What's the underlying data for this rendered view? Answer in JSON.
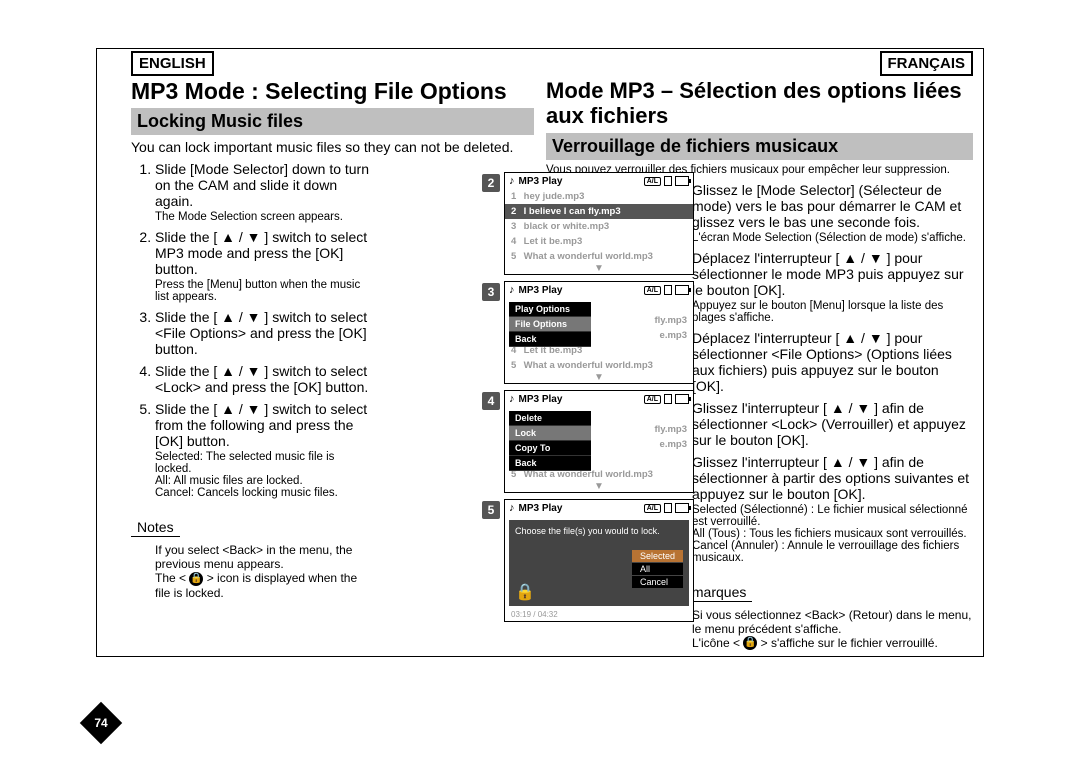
{
  "page_number": "74",
  "lang_en": "ENGLISH",
  "lang_fr": "FRANÇAIS",
  "en": {
    "title": "MP3 Mode : Selecting File Options",
    "section": "Locking Music files",
    "intro": "You can lock important music files so they can not be deleted.",
    "steps": [
      {
        "t": "Slide [Mode Selector] down to turn on the CAM and slide it down again.",
        "s": "The Mode Selection screen appears."
      },
      {
        "t": "Slide the [ ▲ / ▼ ] switch to select MP3 mode and press the [OK] button.",
        "s": "Press the [Menu] button when the music list appears."
      },
      {
        "t": "Slide the [ ▲ / ▼ ] switch to select <File Options> and press the [OK] button."
      },
      {
        "t": "Slide the [ ▲ / ▼ ] switch to select <Lock> and press the [OK] button."
      },
      {
        "t": "Slide the [ ▲ / ▼ ] switch to select from the following and press the [OK] button.",
        "s": "Selected: The selected music file is locked.\nAll: All music files are locked.\nCancel: Cancels locking music files."
      }
    ],
    "notes_label": "Notes",
    "notes": [
      "If you select <Back> in the menu, the previous menu appears.",
      "The < 🔒 > icon is displayed when the file is locked."
    ]
  },
  "fr": {
    "title": "Mode MP3 – Sélection des options liées aux fichiers",
    "section": "Verrouillage de fichiers musicaux",
    "intro": "Vous pouvez verrouiller des fichiers musicaux pour empêcher leur suppression.",
    "steps": [
      {
        "t": "Glissez le [Mode Selector] (Sélecteur de mode) vers le bas pour démarrer le CAM et glissez vers le bas une seconde fois.",
        "s": "L'écran Mode Selection (Sélection de mode) s'affiche."
      },
      {
        "t": "Déplacez l'interrupteur [ ▲ / ▼ ] pour sélectionner le mode MP3 puis appuyez sur le bouton [OK].",
        "s": "Appuyez sur le bouton [Menu] lorsque la liste des plages s'affiche."
      },
      {
        "t": "Déplacez l'interrupteur [ ▲ / ▼ ] pour sélectionner <File Options> (Options liées aux fichiers) puis appuyez sur le bouton [OK]."
      },
      {
        "t": "Glissez l'interrupteur [ ▲ / ▼ ] afin de sélectionner <Lock> (Verrouiller) et appuyez sur le bouton [OK]."
      },
      {
        "t": "Glissez l'interrupteur [ ▲ / ▼ ] afin de sélectionner à partir des options suivantes et appuyez sur le bouton [OK].",
        "s": "Selected (Sélectionné) : Le fichier musical sélectionné est verrouillé.\nAll (Tous) : Tous les fichiers musicaux sont verrouillés.\nCancel (Annuler) : Annule le verrouillage des fichiers musicaux."
      }
    ],
    "notes_label": "Remarques",
    "notes": [
      "Si vous sélectionnez <Back> (Retour) dans le menu, le menu précédent s'affiche.",
      "L'icône < 🔒 > s'affiche sur le fichier verrouillé."
    ]
  },
  "screens": {
    "header": "MP3 Play",
    "icon_all": "A/L",
    "tracks": [
      {
        "n": "1",
        "t": "hey jude.mp3"
      },
      {
        "n": "2",
        "t": "I believe I can fly.mp3"
      },
      {
        "n": "3",
        "t": "black or white.mp3"
      },
      {
        "n": "4",
        "t": "Let it be.mp3"
      },
      {
        "n": "5",
        "t": "What a wonderful world.mp3"
      }
    ],
    "menu_s3": [
      "Play Options",
      "File Options",
      "Back"
    ],
    "menu_s4": [
      "Delete",
      "Lock",
      "Copy To",
      "Back"
    ],
    "lock_prompt": "Choose the file(s) you would to lock.",
    "lock_opts": [
      "Selected",
      "All",
      "Cancel"
    ],
    "time": "03:19 / 04:32"
  },
  "colors": {
    "band": "#bfbfbf",
    "step_num_bg": "#555555",
    "menu_bg": "#000000",
    "menu_hl": "#777777",
    "lock_hl": "#b87333"
  }
}
